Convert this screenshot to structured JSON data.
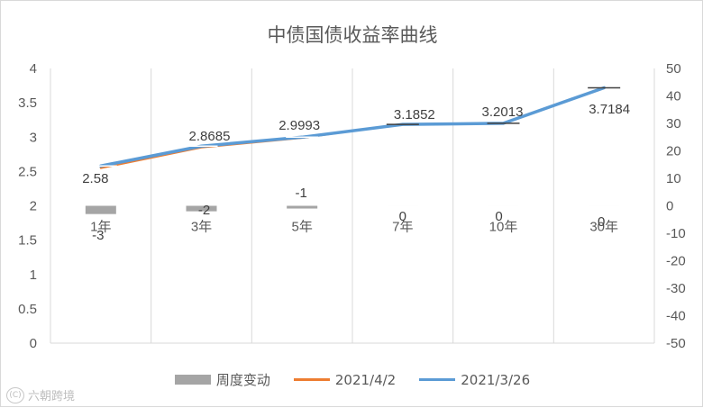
{
  "chart_data": {
    "type": "line",
    "title": "中债国债收益率曲线",
    "categories": [
      "1年",
      "3年",
      "5年",
      "7年",
      "10年",
      "30年"
    ],
    "left_axis": {
      "min": 0,
      "max": 4,
      "step": 0.5,
      "ticks": [
        "0",
        "0.5",
        "1",
        "1.5",
        "2",
        "2.5",
        "3",
        "3.5",
        "4"
      ]
    },
    "right_axis": {
      "min": -50,
      "max": 50,
      "step": 10,
      "ticks": [
        "-50",
        "-40",
        "-30",
        "-20",
        "-10",
        "0",
        "10",
        "20",
        "30",
        "40",
        "50"
      ]
    },
    "grid": "vertical",
    "legend_position": "bottom",
    "series": [
      {
        "name": "周度变动",
        "kind": "bar",
        "axis": "right",
        "color": "#a5a5a5",
        "values": [
          -3,
          -2,
          -1,
          0,
          0,
          0
        ],
        "labels": [
          "-3",
          "-2",
          "-1",
          "0",
          "0",
          "0"
        ]
      },
      {
        "name": "2021/4/2",
        "kind": "line",
        "axis": "left",
        "color": "#ed7d31",
        "values": [
          2.55,
          2.85,
          2.99,
          3.19,
          3.2,
          3.72
        ]
      },
      {
        "name": "2021/3/26",
        "kind": "line",
        "axis": "left",
        "color": "#5b9bd5",
        "values": [
          2.58,
          2.8685,
          2.9993,
          3.1852,
          3.2013,
          3.7184
        ],
        "labels": [
          "2.58",
          "2.8685",
          "2.9993",
          "3.1852",
          "3.2013",
          "3.7184"
        ]
      }
    ]
  },
  "watermark": {
    "logo": "(C)",
    "text": "六朝跨境"
  }
}
